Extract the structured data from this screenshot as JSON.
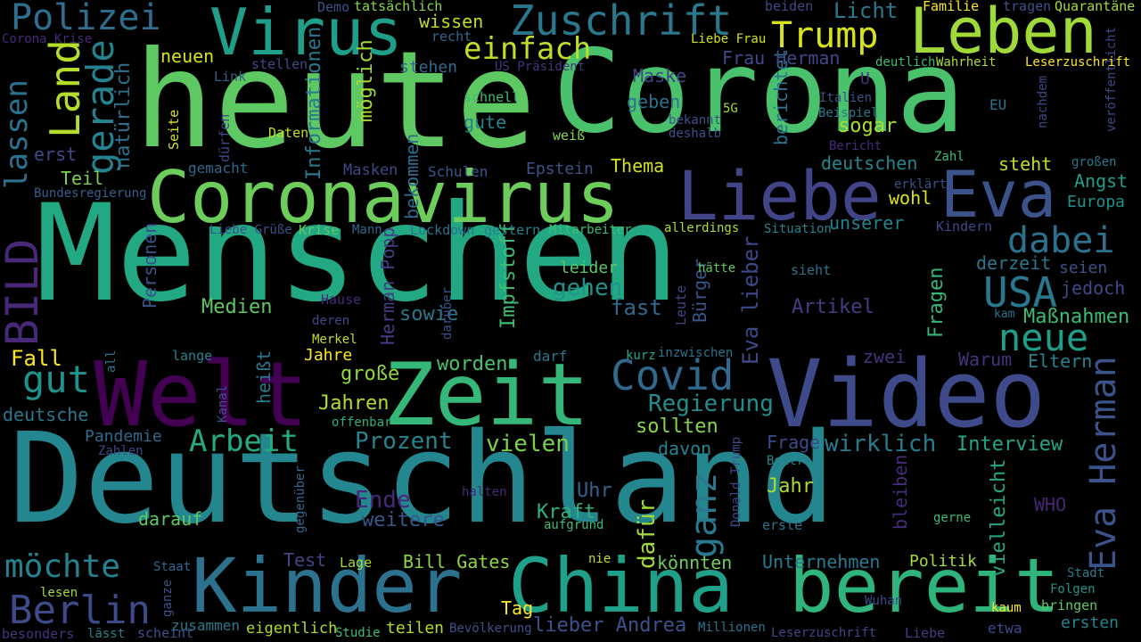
{
  "words": [
    {
      "text": "Menschen",
      "color": "#23a884"
    },
    {
      "text": "Deutschland",
      "color": "#24868e"
    },
    {
      "text": "heute",
      "color": "#5ec962"
    },
    {
      "text": "Corona",
      "color": "#4ac16d"
    },
    {
      "text": "Video",
      "color": "#3e4a89"
    },
    {
      "text": "Zeit",
      "color": "#35b779"
    },
    {
      "text": "Welt",
      "color": "#440154"
    },
    {
      "text": "Kinder",
      "color": "#2c728e"
    },
    {
      "text": "China",
      "color": "#1fa088"
    },
    {
      "text": "bereit",
      "color": "#2fb47c"
    },
    {
      "text": "Coronavirus",
      "color": "#6ccd5a"
    },
    {
      "text": "Liebe",
      "color": "#414487"
    },
    {
      "text": "Eva",
      "color": "#3b528b"
    },
    {
      "text": "Virus",
      "color": "#1f9e89"
    },
    {
      "text": "Leben",
      "color": "#a0da39"
    },
    {
      "text": "Zuschrift",
      "color": "#2a788e"
    },
    {
      "text": "Polizei",
      "color": "#2e6e8e"
    },
    {
      "text": "Trump",
      "color": "#d8e219"
    },
    {
      "text": "einfach",
      "color": "#bddf26"
    },
    {
      "text": "Land",
      "color": "#b5de2b"
    },
    {
      "text": "gerade",
      "color": "#26828e"
    },
    {
      "text": "lassen",
      "color": "#2c728e"
    },
    {
      "text": "BILD",
      "color": "#482878"
    },
    {
      "text": "Covid",
      "color": "#31688e"
    },
    {
      "text": "USA",
      "color": "#2a788e"
    },
    {
      "text": "dabei",
      "color": "#2c728e"
    },
    {
      "text": "neue",
      "color": "#1f9e89"
    },
    {
      "text": "Eva Herman",
      "color": "#3b528b"
    },
    {
      "text": "ganz",
      "color": "#2a788e"
    },
    {
      "text": "Berlin",
      "color": "#3e4a89"
    },
    {
      "text": "möchte",
      "color": "#26828e"
    },
    {
      "text": "gut",
      "color": "#20928c"
    },
    {
      "text": "Arbeit",
      "color": "#25ab82"
    },
    {
      "text": "Regierung",
      "color": "#228d8d"
    },
    {
      "text": "Prozent",
      "color": "#25848e"
    },
    {
      "text": "vielen",
      "color": "#7ad151"
    },
    {
      "text": "wirklich",
      "color": "#287c8e"
    },
    {
      "text": "Interview",
      "color": "#22a785"
    },
    {
      "text": "Informationen",
      "color": "#2a788e"
    },
    {
      "text": "möglich",
      "color": "#a5db36"
    },
    {
      "text": "natürlich",
      "color": "#2d708e"
    },
    {
      "text": "bekommen",
      "color": "#2f6c8e"
    },
    {
      "text": "Impfstoff",
      "color": "#3dbc74"
    },
    {
      "text": "Herman Popp",
      "color": "#433e85"
    },
    {
      "text": "Bürger",
      "color": "#39568c"
    },
    {
      "text": "Eva lieber",
      "color": "#3e4989"
    },
    {
      "text": "berichtet",
      "color": "#2c728e"
    },
    {
      "text": "Fragen",
      "color": "#35b779"
    },
    {
      "text": "Personen",
      "color": "#3b528b"
    },
    {
      "text": "leider",
      "color": "#5ec962"
    },
    {
      "text": "gehen",
      "color": "#21918c"
    },
    {
      "text": "fast",
      "color": "#31688e"
    },
    {
      "text": "Artikel",
      "color": "#433e85"
    },
    {
      "text": "Maßnahmen",
      "color": "#3dbc74"
    },
    {
      "text": "Medien",
      "color": "#5ec962"
    },
    {
      "text": "sowie",
      "color": "#2a788e"
    },
    {
      "text": "worden",
      "color": "#4ac16d"
    },
    {
      "text": "Jahre",
      "color": "#fde725"
    },
    {
      "text": "große",
      "color": "#93d741"
    },
    {
      "text": "Jahren",
      "color": "#b2dd2d"
    },
    {
      "text": "Fall",
      "color": "#fde725"
    },
    {
      "text": "deutsche",
      "color": "#2a788e"
    },
    {
      "text": "Pandemie",
      "color": "#31688e"
    },
    {
      "text": "Ende",
      "color": "#482878"
    },
    {
      "text": "weitere",
      "color": "#39568c"
    },
    {
      "text": "darauf",
      "color": "#5ec962"
    },
    {
      "text": "Kraft",
      "color": "#2db27d"
    },
    {
      "text": "dafür",
      "color": "#a0da39"
    },
    {
      "text": "Uhr",
      "color": "#35608d"
    },
    {
      "text": "sollten",
      "color": "#86d549"
    },
    {
      "text": "davon",
      "color": "#25838e"
    },
    {
      "text": "Frage",
      "color": "#3e4a89"
    },
    {
      "text": "Jahr",
      "color": "#a8db34"
    },
    {
      "text": "bleiben",
      "color": "#472c7a"
    },
    {
      "text": "vielleicht",
      "color": "#22a785"
    },
    {
      "text": "WHO",
      "color": "#482576"
    },
    {
      "text": "Test",
      "color": "#414487"
    },
    {
      "text": "Bill Gates",
      "color": "#8fd744"
    },
    {
      "text": "könnten",
      "color": "#6ece58"
    },
    {
      "text": "Unternehmen",
      "color": "#2a788e"
    },
    {
      "text": "Politik",
      "color": "#a5db36"
    },
    {
      "text": "Tag",
      "color": "#fde725"
    },
    {
      "text": "lieber Andrea",
      "color": "#3b528b"
    },
    {
      "text": "teilen",
      "color": "#b5de2b"
    },
    {
      "text": "ersten",
      "color": "#25848e"
    },
    {
      "text": "Thema",
      "color": "#d5e21a"
    },
    {
      "text": "steht",
      "color": "#bddf26"
    },
    {
      "text": "deutschen",
      "color": "#24868e"
    },
    {
      "text": "Angst",
      "color": "#1f9e89"
    },
    {
      "text": "Europa",
      "color": "#20928c"
    },
    {
      "text": "wohl",
      "color": "#dde318"
    },
    {
      "text": "unserer",
      "color": "#26828e"
    },
    {
      "text": "derzeit",
      "color": "#2a788e"
    },
    {
      "text": "seien",
      "color": "#3b528b"
    },
    {
      "text": "jedoch",
      "color": "#3e4a89"
    },
    {
      "text": "zwei",
      "color": "#46337f"
    },
    {
      "text": "Warum",
      "color": "#46327e"
    },
    {
      "text": "Eltern",
      "color": "#26828e"
    },
    {
      "text": "Licht",
      "color": "#2a788e"
    },
    {
      "text": "Frau Herman",
      "color": "#3f4889"
    },
    {
      "text": "sogar",
      "color": "#addc30"
    },
    {
      "text": "Maske",
      "color": "#414487"
    },
    {
      "text": "geben",
      "color": "#2c728e"
    },
    {
      "text": "wissen",
      "color": "#bddf26"
    },
    {
      "text": "neuen",
      "color": "#d8e219"
    },
    {
      "text": "gute",
      "color": "#26828e"
    },
    {
      "text": "erst",
      "color": "#3e4a89"
    },
    {
      "text": "Teil",
      "color": "#7ad151"
    },
    {
      "text": "Masken",
      "color": "#3e4989"
    },
    {
      "text": "Schulen",
      "color": "#39568c"
    },
    {
      "text": "Epstein",
      "color": "#3b528b"
    },
    {
      "text": "Familie",
      "color": "#fde725"
    },
    {
      "text": "Quarantäne",
      "color": "#a2da37"
    },
    {
      "text": "tragen",
      "color": "#3b528b"
    },
    {
      "text": "beiden",
      "color": "#3e4989"
    },
    {
      "text": "tatsächlich",
      "color": "#86d549"
    },
    {
      "text": "Demo",
      "color": "#3b528b"
    },
    {
      "text": "Corona Krise",
      "color": "#482878"
    },
    {
      "text": "recht",
      "color": "#31688e"
    },
    {
      "text": "Liebe Frau",
      "color": "#d2e21b"
    },
    {
      "text": "US Präsident",
      "color": "#46337f"
    },
    {
      "text": "stehen",
      "color": "#31688e"
    },
    {
      "text": "stellen",
      "color": "#3e4a89"
    },
    {
      "text": "Link",
      "color": "#35608d"
    },
    {
      "text": "schnell",
      "color": "#3dbc74"
    },
    {
      "text": "weiß",
      "color": "#86d549"
    },
    {
      "text": "Daten",
      "color": "#bddf26"
    },
    {
      "text": "dürfen",
      "color": "#3e4989"
    },
    {
      "text": "Seite",
      "color": "#d5e21a"
    },
    {
      "text": "gemacht",
      "color": "#31688e"
    },
    {
      "text": "Bundesregierung",
      "color": "#355f8d"
    },
    {
      "text": "Krise",
      "color": "#5ec962"
    },
    {
      "text": "Liebe Grüße",
      "color": "#3b528b"
    },
    {
      "text": "Mann",
      "color": "#31688e"
    },
    {
      "text": "Lockdown",
      "color": "#2c728e"
    },
    {
      "text": "gestern",
      "color": "#26828e"
    },
    {
      "text": "Mitarbeiter",
      "color": "#3dbc74"
    },
    {
      "text": "allerdings",
      "color": "#addc30"
    },
    {
      "text": "Situation",
      "color": "#26828e"
    },
    {
      "text": "Kindern",
      "color": "#3e4989"
    },
    {
      "text": "hätte",
      "color": "#5ec962"
    },
    {
      "text": "sieht",
      "color": "#2c728e"
    },
    {
      "text": "Leute",
      "color": "#414487"
    },
    {
      "text": "darüber",
      "color": "#3b528b"
    },
    {
      "text": "Hause",
      "color": "#482878"
    },
    {
      "text": "deren",
      "color": "#3e4a89"
    },
    {
      "text": "Merkel",
      "color": "#bddf26"
    },
    {
      "text": "lange",
      "color": "#25838e"
    },
    {
      "text": "heißt",
      "color": "#2a788e"
    },
    {
      "text": "darf",
      "color": "#2a788e"
    },
    {
      "text": "kurz",
      "color": "#22a785"
    },
    {
      "text": "inzwischen",
      "color": "#2c728e"
    },
    {
      "text": "offenbar",
      "color": "#2db27d"
    },
    {
      "text": "all",
      "color": "#2a788e"
    },
    {
      "text": "Kanal",
      "color": "#3b528b"
    },
    {
      "text": "Zahlen",
      "color": "#3e4989"
    },
    {
      "text": "Donald Trump",
      "color": "#3e4989"
    },
    {
      "text": "Beitrag",
      "color": "#25838e"
    },
    {
      "text": "halten",
      "color": "#482878"
    },
    {
      "text": "gegenüber",
      "color": "#31688e"
    },
    {
      "text": "aufgrund",
      "color": "#3dbc74"
    },
    {
      "text": "erste",
      "color": "#2c728e"
    },
    {
      "text": "gerne",
      "color": "#3dbc74"
    },
    {
      "text": "Stadt",
      "color": "#2a788e"
    },
    {
      "text": "Folgen",
      "color": "#20928c"
    },
    {
      "text": "bringen",
      "color": "#5ec962"
    },
    {
      "text": "kaum",
      "color": "#fde725"
    },
    {
      "text": "Wuhan",
      "color": "#3e4a89"
    },
    {
      "text": "Lage",
      "color": "#a5db36"
    },
    {
      "text": "Staat",
      "color": "#31688e"
    },
    {
      "text": "nie",
      "color": "#bddf26"
    },
    {
      "text": "lesen",
      "color": "#a0da39"
    },
    {
      "text": "ganze",
      "color": "#3b528b"
    },
    {
      "text": "besonders",
      "color": "#46337f"
    },
    {
      "text": "lässt",
      "color": "#25838e"
    },
    {
      "text": "scheint",
      "color": "#3b528b"
    },
    {
      "text": "zusammen",
      "color": "#2a788e"
    },
    {
      "text": "eigentlich",
      "color": "#addc30"
    },
    {
      "text": "Studie",
      "color": "#3dbc74"
    },
    {
      "text": "Bevölkerung",
      "color": "#3b528b"
    },
    {
      "text": "Millionen",
      "color": "#2c728e"
    },
    {
      "text": "Leserzuschrift",
      "color": "#3e4989"
    },
    {
      "text": "Liebe",
      "color": "#433e85"
    },
    {
      "text": "etwa",
      "color": "#3e4a89"
    },
    {
      "text": "veröffentlicht",
      "color": "#3e4989"
    },
    {
      "text": "Leserzuschrift",
      "color": "#fde725"
    },
    {
      "text": "Wahrheit",
      "color": "#addc30"
    },
    {
      "text": "deutlich",
      "color": "#3dbc74"
    },
    {
      "text": "nachdem",
      "color": "#3e4989"
    },
    {
      "text": "Italien",
      "color": "#3b528b"
    },
    {
      "text": "Beispiel",
      "color": "#2a788e"
    },
    {
      "text": "EU",
      "color": "#2c728e"
    },
    {
      "text": "U",
      "color": "#46337f"
    },
    {
      "text": "5G",
      "color": "#a5db36"
    },
    {
      "text": "bekannt",
      "color": "#3b528b"
    },
    {
      "text": "deshalb",
      "color": "#3b528b"
    },
    {
      "text": "Bericht",
      "color": "#482878"
    },
    {
      "text": "Zahl",
      "color": "#3dbc74"
    },
    {
      "text": "erklärt",
      "color": "#3b528b"
    },
    {
      "text": "großen",
      "color": "#2a788e"
    },
    {
      "text": "kam",
      "color": "#2c728e"
    }
  ]
}
